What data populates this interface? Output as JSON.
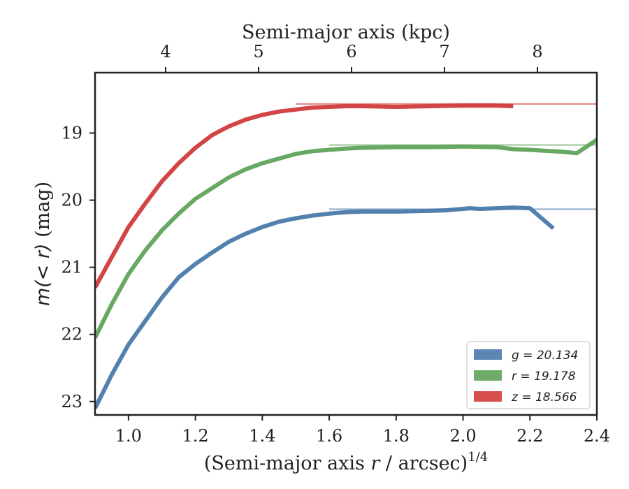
{
  "chart_data": {
    "type": "line",
    "xlabel_bottom_prefix": "(Semi-major axis ",
    "xlabel_bottom_var": "r",
    "xlabel_bottom_suffix": " / arcsec)",
    "xlabel_bottom_exp": "1/4",
    "xlabel_top": "Semi-major axis (kpc)",
    "ylabel_prefix": "m(< r)",
    "ylabel_suffix": " (mag)",
    "xlim": [
      0.9,
      2.4
    ],
    "ylim": [
      23.2,
      18.1
    ],
    "y_inverted": true,
    "grid": false,
    "legend_position": "lower-right",
    "xticks_bottom": [
      1.0,
      1.2,
      1.4,
      1.6,
      1.8,
      2.0,
      2.2,
      2.4
    ],
    "xtick_labels_bottom": [
      "1.0",
      "1.2",
      "1.4",
      "1.6",
      "1.8",
      "2.0",
      "2.2",
      "2.4"
    ],
    "xticks_top": [
      4,
      5,
      6,
      7,
      8
    ],
    "xtick_labels_top": [
      "4",
      "5",
      "6",
      "7",
      "8"
    ],
    "yticks": [
      19,
      20,
      21,
      22,
      23
    ],
    "ytick_labels": [
      "19",
      "20",
      "21",
      "22",
      "23"
    ],
    "series": [
      {
        "name": "g = 20.134",
        "color": "#4a7aaa",
        "asymptote": 20.134,
        "x": [
          0.9,
          0.95,
          1.0,
          1.05,
          1.1,
          1.15,
          1.2,
          1.25,
          1.3,
          1.35,
          1.4,
          1.45,
          1.5,
          1.55,
          1.6,
          1.65,
          1.7,
          1.8,
          1.9,
          1.95,
          2.0,
          2.02,
          2.05,
          2.1,
          2.15,
          2.2,
          2.27
        ],
        "y": [
          23.1,
          22.6,
          22.15,
          21.8,
          21.45,
          21.15,
          20.95,
          20.78,
          20.62,
          20.5,
          20.4,
          20.32,
          20.27,
          20.23,
          20.2,
          20.18,
          20.17,
          20.17,
          20.16,
          20.15,
          20.13,
          20.12,
          20.13,
          20.12,
          20.11,
          20.12,
          20.42
        ]
      },
      {
        "name": "r = 19.178",
        "color": "#5fa35a",
        "asymptote": 19.178,
        "x": [
          0.9,
          0.95,
          1.0,
          1.05,
          1.1,
          1.15,
          1.2,
          1.25,
          1.3,
          1.35,
          1.4,
          1.45,
          1.5,
          1.55,
          1.6,
          1.65,
          1.7,
          1.8,
          1.9,
          2.0,
          2.1,
          2.15,
          2.2,
          2.3,
          2.34,
          2.4
        ],
        "y": [
          22.05,
          21.55,
          21.1,
          20.75,
          20.45,
          20.2,
          19.98,
          19.82,
          19.66,
          19.54,
          19.45,
          19.38,
          19.31,
          19.27,
          19.25,
          19.23,
          19.22,
          19.21,
          19.21,
          19.2,
          19.21,
          19.24,
          19.25,
          19.28,
          19.3,
          19.1
        ]
      },
      {
        "name": "z = 18.566",
        "color": "#d13b3b",
        "asymptote": 18.566,
        "x": [
          0.9,
          0.95,
          1.0,
          1.05,
          1.1,
          1.15,
          1.2,
          1.25,
          1.3,
          1.35,
          1.4,
          1.45,
          1.5,
          1.55,
          1.6,
          1.65,
          1.7,
          1.8,
          1.9,
          2.0,
          2.1,
          2.15
        ],
        "y": [
          21.3,
          20.85,
          20.4,
          20.05,
          19.72,
          19.45,
          19.22,
          19.03,
          18.9,
          18.8,
          18.73,
          18.68,
          18.65,
          18.62,
          18.61,
          18.6,
          18.6,
          18.61,
          18.6,
          18.59,
          18.59,
          18.6
        ]
      }
    ]
  }
}
